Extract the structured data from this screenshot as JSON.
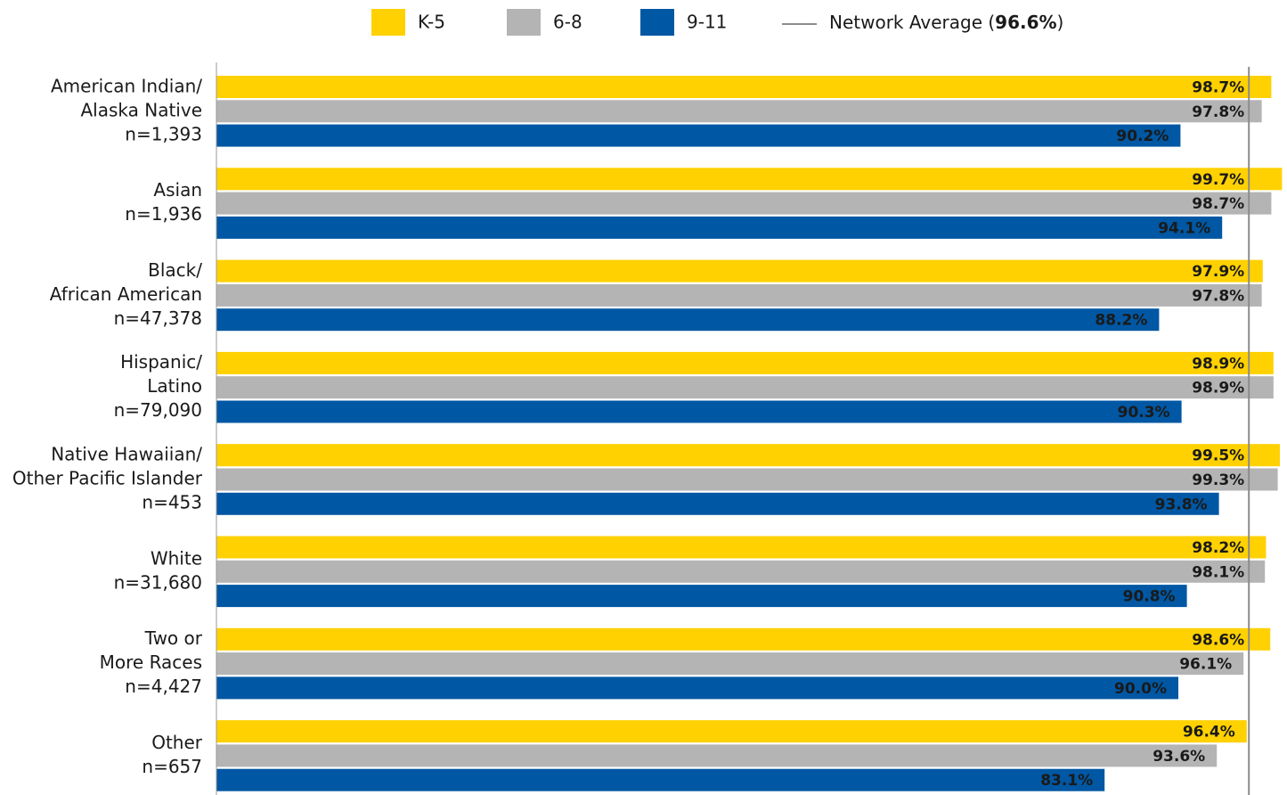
{
  "chart_data": {
    "type": "hbar",
    "categories": [
      [
        "American Indian/",
        "Alaska Native",
        "n=1,393"
      ],
      [
        "Asian",
        "n=1,936"
      ],
      [
        "Black/",
        "African American",
        "n=47,378"
      ],
      [
        "Hispanic/",
        "Latino",
        "n=79,090"
      ],
      [
        "Native Hawaiian/",
        "Other Pacific Islander",
        "n=453"
      ],
      [
        "White",
        "n=31,680"
      ],
      [
        "Two or",
        "More Races",
        "n=4,427"
      ],
      [
        "Other",
        "n=657"
      ]
    ],
    "series": [
      {
        "name": "K-5",
        "color": "#FFD100",
        "label_color": "#1a1a1a",
        "values": [
          98.7,
          99.7,
          97.9,
          98.9,
          99.5,
          98.2,
          98.6,
          96.4
        ],
        "value_labels": [
          "98.7%",
          "99.7%",
          "97.9%",
          "98.9%",
          "99.5%",
          "98.2%",
          "98.6%",
          "96.4%"
        ]
      },
      {
        "name": "6-8",
        "color": "#B4B4B4",
        "label_color": "#1a1a1a",
        "values": [
          97.8,
          98.7,
          97.8,
          98.9,
          99.3,
          98.1,
          96.1,
          93.6
        ],
        "value_labels": [
          "97.8%",
          "98.7%",
          "97.8%",
          "98.9%",
          "99.3%",
          "98.1%",
          "96.1%",
          "93.6%"
        ]
      },
      {
        "name": "9-11",
        "color": "#0057A3",
        "label_color": "#ffffff",
        "values": [
          90.2,
          94.1,
          88.2,
          90.3,
          93.8,
          90.8,
          90.0,
          83.1
        ],
        "value_labels": [
          "90.2%",
          "94.1%",
          "88.2%",
          "90.3%",
          "93.8%",
          "90.8%",
          "90.0%",
          "83.1%"
        ]
      }
    ],
    "reference_line": {
      "value": 96.6,
      "color": "#8c8c8c",
      "label_parts": [
        "Network Average (",
        "96.6%",
        ")"
      ]
    },
    "xlim": [
      0,
      100
    ]
  }
}
